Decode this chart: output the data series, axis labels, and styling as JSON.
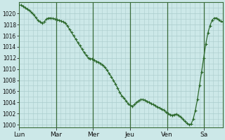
{
  "bg_color": "#cce8e8",
  "grid_color": "#aacccc",
  "line_color": "#2d6a2d",
  "marker_color": "#2d6a2d",
  "ylim": [
    999.5,
    1022.0
  ],
  "yticks": [
    1000,
    1002,
    1004,
    1006,
    1008,
    1010,
    1012,
    1014,
    1016,
    1018,
    1020
  ],
  "day_line_color": "#3a6b3a",
  "xtick_labels": [
    "Lun",
    "Mar",
    "Mer",
    "Jeu",
    "Ven",
    "Sa"
  ],
  "pressure": [
    1021.5,
    1021.5,
    1021.3,
    1021.0,
    1020.8,
    1020.5,
    1020.2,
    1019.8,
    1019.3,
    1018.8,
    1018.5,
    1018.3,
    1018.5,
    1019.0,
    1019.2,
    1019.2,
    1019.1,
    1019.0,
    1018.9,
    1018.8,
    1018.7,
    1018.5,
    1018.3,
    1017.8,
    1017.2,
    1016.6,
    1016.0,
    1015.4,
    1014.8,
    1014.2,
    1013.6,
    1013.0,
    1012.5,
    1012.0,
    1011.9,
    1011.8,
    1011.6,
    1011.4,
    1011.2,
    1011.0,
    1010.7,
    1010.3,
    1009.8,
    1009.2,
    1008.6,
    1008.0,
    1007.3,
    1006.6,
    1005.8,
    1005.2,
    1004.8,
    1004.3,
    1003.8,
    1003.5,
    1003.3,
    1003.6,
    1004.0,
    1004.3,
    1004.5,
    1004.5,
    1004.4,
    1004.2,
    1004.0,
    1003.8,
    1003.6,
    1003.4,
    1003.2,
    1003.0,
    1002.8,
    1002.6,
    1002.3,
    1002.0,
    1001.8,
    1001.7,
    1001.8,
    1001.9,
    1001.7,
    1001.4,
    1001.0,
    1000.6,
    1000.3,
    1000.0,
    1000.1,
    1001.0,
    1002.5,
    1004.5,
    1007.0,
    1009.5,
    1012.0,
    1014.5,
    1016.5,
    1017.8,
    1018.8,
    1019.2,
    1019.2,
    1018.9,
    1018.6,
    1018.5
  ],
  "n_days": 5.5,
  "hours_per_day": 24,
  "day_start_hours": [
    0,
    24,
    48,
    72,
    96,
    120
  ]
}
